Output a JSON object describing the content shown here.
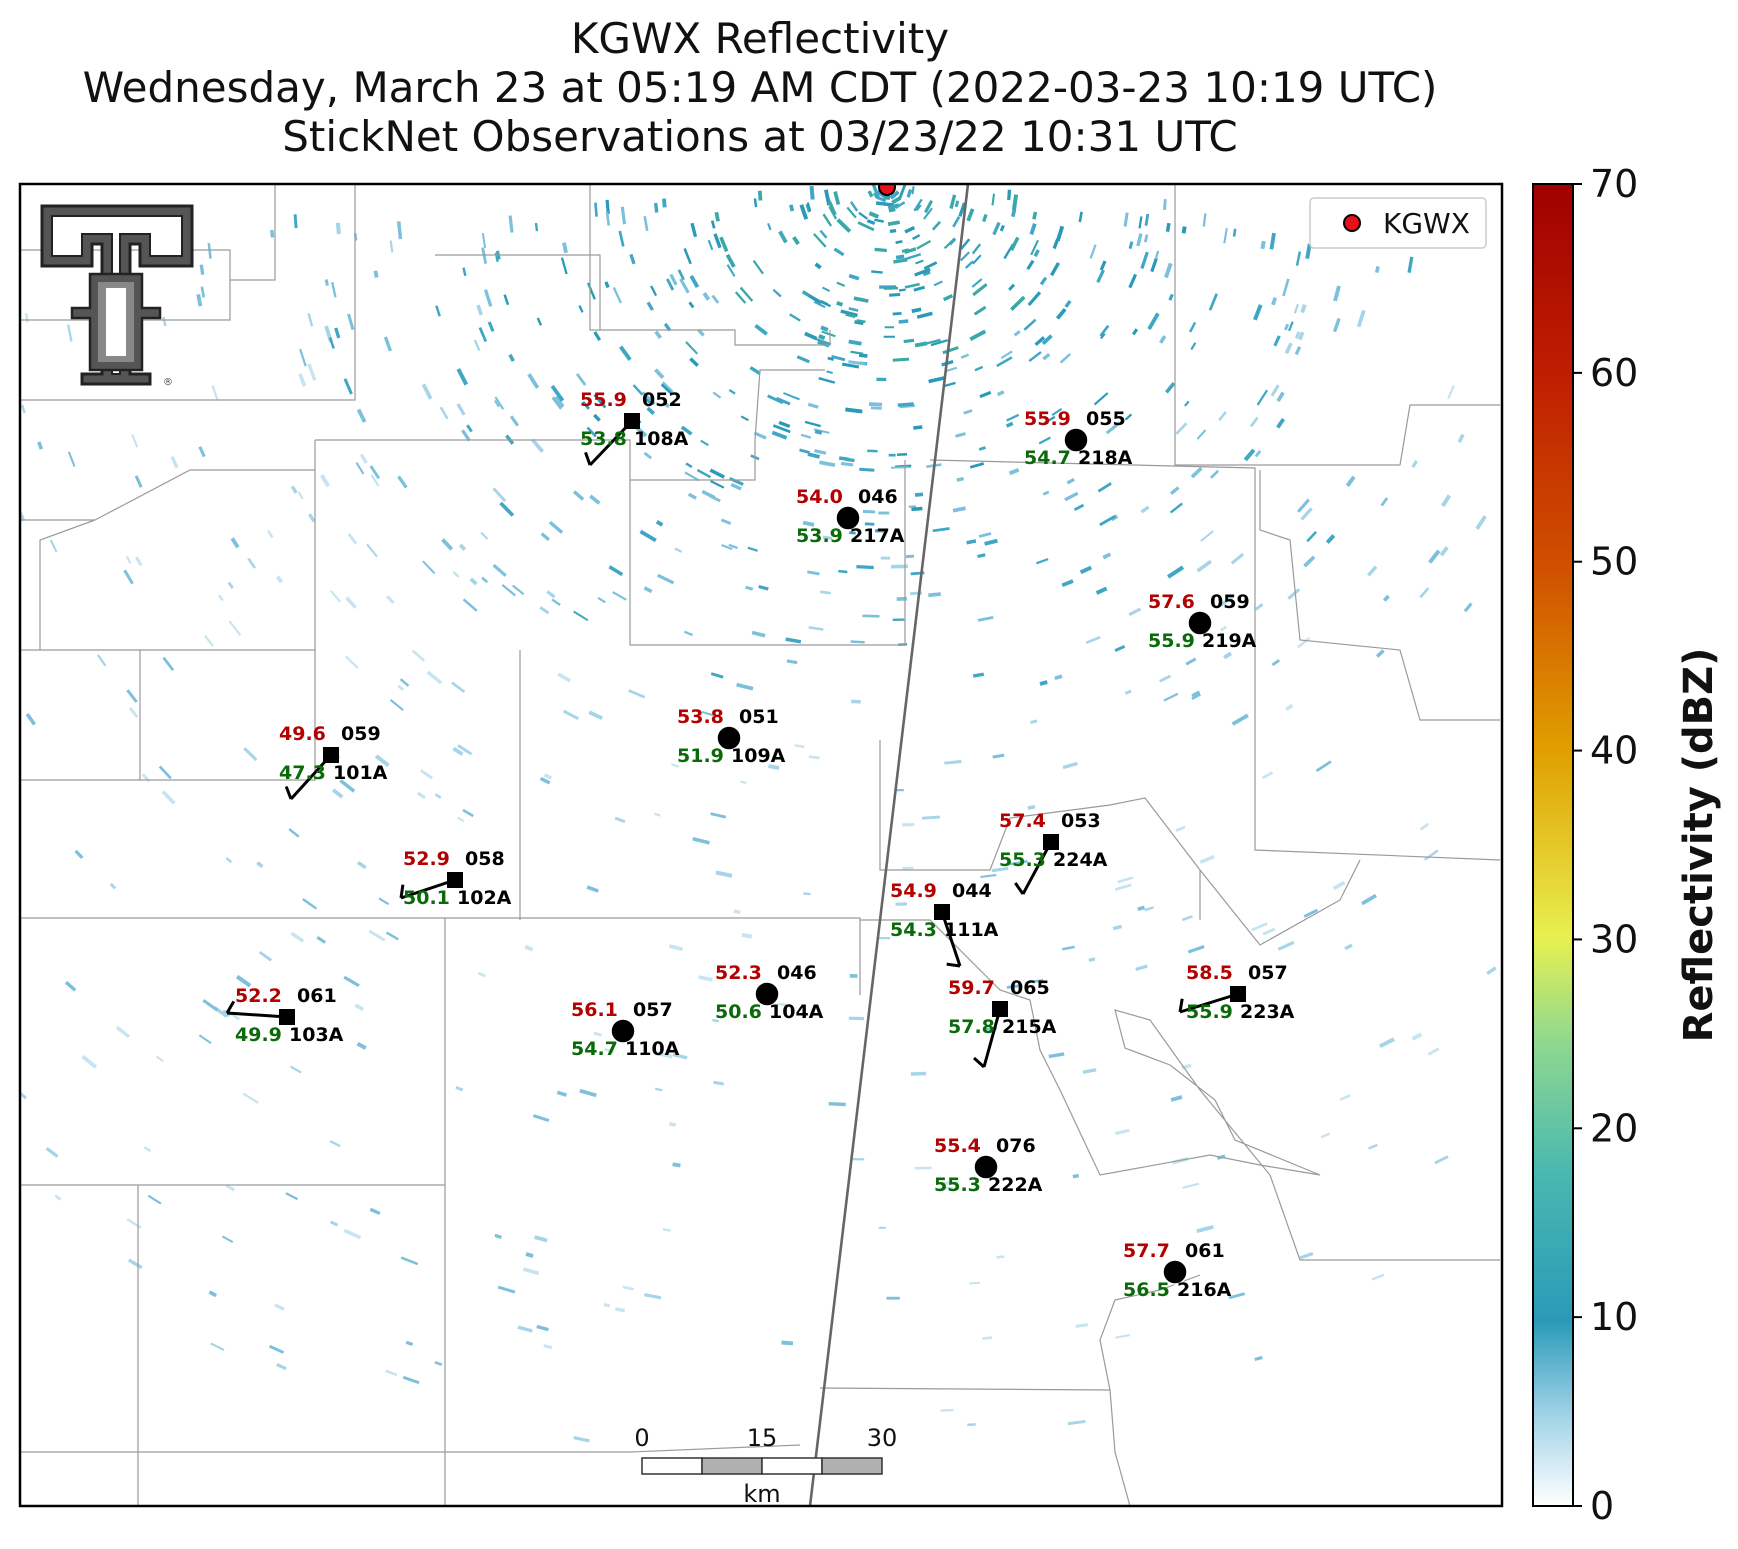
{
  "title": {
    "line1": "KGWX Reflectivity",
    "line2": "Wednesday, March 23 at 05:19 AM CDT (2022-03-23 10:19 UTC)",
    "line3": "StickNet Observations at 03/23/22 10:31 UTC"
  },
  "legend": {
    "label": "KGWX",
    "marker_color": "#e8101a"
  },
  "colorbar": {
    "label": "Reflectivity (dBZ)",
    "ticks": [
      "0",
      "10",
      "20",
      "30",
      "40",
      "50",
      "60",
      "70"
    ],
    "range": [
      0,
      70
    ],
    "colors": [
      "#ffffff",
      "#2a9ab8",
      "#5cc8a0",
      "#e8f050",
      "#e0a000",
      "#d05000",
      "#a00000"
    ]
  },
  "scalebar": {
    "ticks": [
      "0",
      "15",
      "30"
    ],
    "unit": "km"
  },
  "logo": {
    "name": "texas-tech-double-t-logo"
  },
  "stations": [
    {
      "id": "108A",
      "temp": "55.9",
      "dew": "53.8",
      "pres": "052",
      "marker": "square"
    },
    {
      "id": "218A",
      "temp": "55.9",
      "dew": "54.7",
      "pres": "055",
      "marker": "circle"
    },
    {
      "id": "217A",
      "temp": "54.0",
      "dew": "53.9",
      "pres": "046",
      "marker": "circle"
    },
    {
      "id": "219A",
      "temp": "57.6",
      "dew": "55.9",
      "pres": "059",
      "marker": "circle"
    },
    {
      "id": "109A",
      "temp": "53.8",
      "dew": "51.9",
      "pres": "051",
      "marker": "circle"
    },
    {
      "id": "101A",
      "temp": "49.6",
      "dew": "47.3",
      "pres": "059",
      "marker": "square"
    },
    {
      "id": "224A",
      "temp": "57.4",
      "dew": "55.3",
      "pres": "053",
      "marker": "square"
    },
    {
      "id": "102A",
      "temp": "52.9",
      "dew": "50.1",
      "pres": "058",
      "marker": "square"
    },
    {
      "id": "111A",
      "temp": "54.9",
      "dew": "54.3",
      "pres": "044",
      "marker": "square"
    },
    {
      "id": "104A",
      "temp": "52.3",
      "dew": "50.6",
      "pres": "046",
      "marker": "circle"
    },
    {
      "id": "215A",
      "temp": "59.7",
      "dew": "57.8",
      "pres": "065",
      "marker": "square"
    },
    {
      "id": "223A",
      "temp": "58.5",
      "dew": "55.9",
      "pres": "057",
      "marker": "square"
    },
    {
      "id": "103A",
      "temp": "52.2",
      "dew": "49.9",
      "pres": "061",
      "marker": "square"
    },
    {
      "id": "110A",
      "temp": "56.1",
      "dew": "54.7",
      "pres": "057",
      "marker": "circle"
    },
    {
      "id": "222A",
      "temp": "55.4",
      "dew": "55.3",
      "pres": "076",
      "marker": "circle"
    },
    {
      "id": "216A",
      "temp": "57.7",
      "dew": "56.5",
      "pres": "061",
      "marker": "circle"
    }
  ]
}
